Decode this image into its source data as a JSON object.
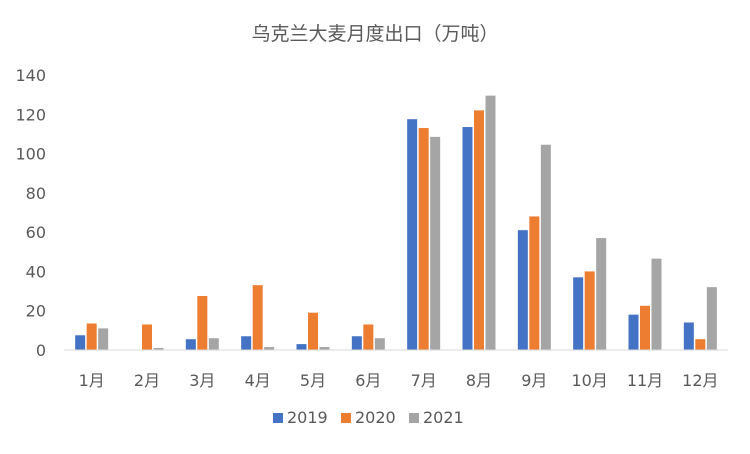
{
  "chart_data": {
    "type": "bar",
    "title": "乌克兰大麦月度出口（万吨）",
    "xlabel": "",
    "ylabel": "",
    "categories": [
      "1月",
      "2月",
      "3月",
      "4月",
      "5月",
      "6月",
      "7月",
      "8月",
      "9月",
      "10月",
      "11月",
      "12月"
    ],
    "ylim": [
      0,
      140
    ],
    "yticks": [
      0,
      20,
      40,
      60,
      80,
      100,
      120,
      140
    ],
    "grid": false,
    "legend": "bottom",
    "series": [
      {
        "name": "2019",
        "color": "#4472C4",
        "values": [
          7.5,
          0,
          5.5,
          7,
          3,
          7,
          117.5,
          113.5,
          61,
          37,
          18,
          14
        ]
      },
      {
        "name": "2020",
        "color": "#ED7D31",
        "values": [
          13.5,
          13,
          27.5,
          33,
          19,
          13,
          113,
          122,
          68,
          40,
          22.5,
          5.5
        ]
      },
      {
        "name": "2021",
        "color": "#A5A5A5",
        "values": [
          11,
          1,
          6,
          1.5,
          1.5,
          6,
          108.5,
          129.5,
          104.5,
          57,
          46.5,
          32
        ]
      }
    ]
  }
}
